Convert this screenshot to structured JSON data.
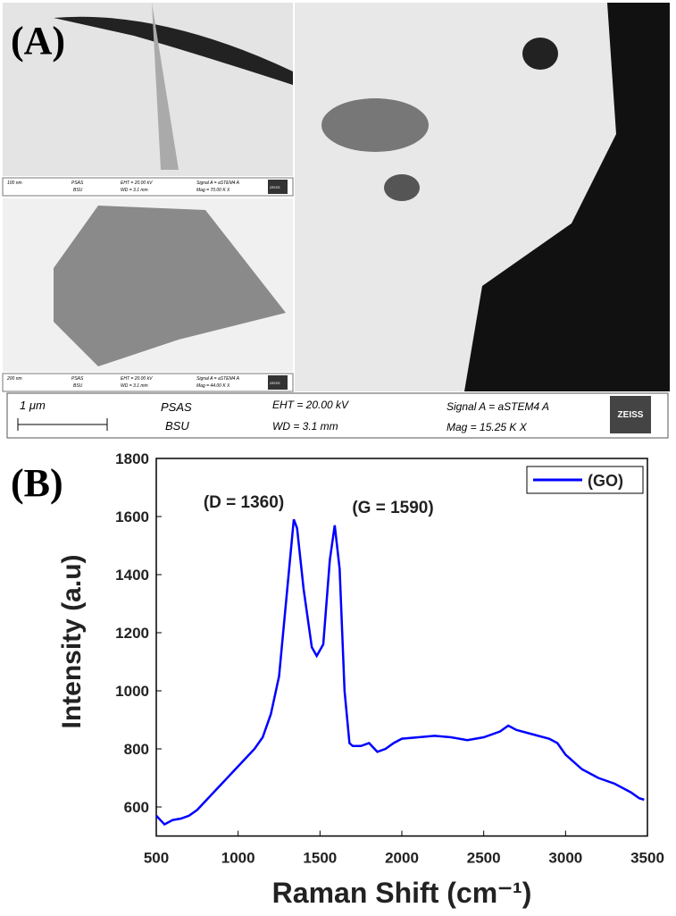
{
  "panel_labels": {
    "a": "(A)",
    "b": "(B)"
  },
  "insets": [
    {
      "scale": "100 nm",
      "lab": "PSAS",
      "org": "BSU",
      "eht": "EHT = 20.00 kV",
      "wd": "WD = 3.1 mm",
      "signal": "Signal A = aSTEM4 A",
      "mag": "Mag = 70.00 K X",
      "logo": "ZEISS"
    },
    {
      "scale": "200 nm",
      "lab": "PSAS",
      "org": "BSU",
      "eht": "EHT = 20.00 kV",
      "wd": "WD = 3.1 mm",
      "signal": "Signal A = aSTEM4 A",
      "mag": "Mag = 44.00 K X",
      "logo": "ZEISS"
    }
  ],
  "info_bar": {
    "scale": "1 μm",
    "lab": "PSAS",
    "org": "BSU",
    "eht": "EHT = 20.00 kV",
    "wd": "WD = 3.1 mm",
    "signal": "Signal A = aSTEM4 A",
    "mag": "Mag = 15.25 K X",
    "logo": "ZEISS"
  },
  "chart_data": {
    "type": "line",
    "x_label": "Raman Shift (cm⁻¹)",
    "y_label": "Intensity (a.u)",
    "annotations": [
      "(D = 1360)",
      "(G = 1590)"
    ],
    "x": [
      500,
      550,
      600,
      650,
      700,
      750,
      800,
      850,
      900,
      950,
      1000,
      1050,
      1100,
      1150,
      1200,
      1250,
      1300,
      1340,
      1360,
      1400,
      1450,
      1480,
      1520,
      1560,
      1590,
      1620,
      1650,
      1680,
      1700,
      1750,
      1800,
      1850,
      1900,
      1950,
      2000,
      2100,
      2200,
      2300,
      2400,
      2500,
      2600,
      2650,
      2700,
      2800,
      2900,
      2950,
      3000,
      3100,
      3200,
      3300,
      3400,
      3450,
      3480
    ],
    "series": [
      {
        "name": "(GO)",
        "color": "#0000ff",
        "values": [
          570,
          540,
          555,
          560,
          570,
          590,
          620,
          650,
          680,
          710,
          740,
          770,
          800,
          840,
          920,
          1050,
          1350,
          1590,
          1560,
          1350,
          1150,
          1120,
          1160,
          1450,
          1570,
          1420,
          1000,
          820,
          810,
          810,
          820,
          790,
          800,
          820,
          835,
          840,
          845,
          840,
          830,
          840,
          860,
          880,
          865,
          850,
          835,
          820,
          780,
          730,
          700,
          680,
          650,
          630,
          625
        ]
      }
    ],
    "xlim": [
      500,
      3500
    ],
    "xticks": [
      500,
      1000,
      1500,
      2000,
      2500,
      3000,
      3500
    ],
    "ylim": [
      500,
      1800
    ],
    "yticks": [
      600,
      800,
      1000,
      1200,
      1400,
      1600,
      1800
    ]
  }
}
